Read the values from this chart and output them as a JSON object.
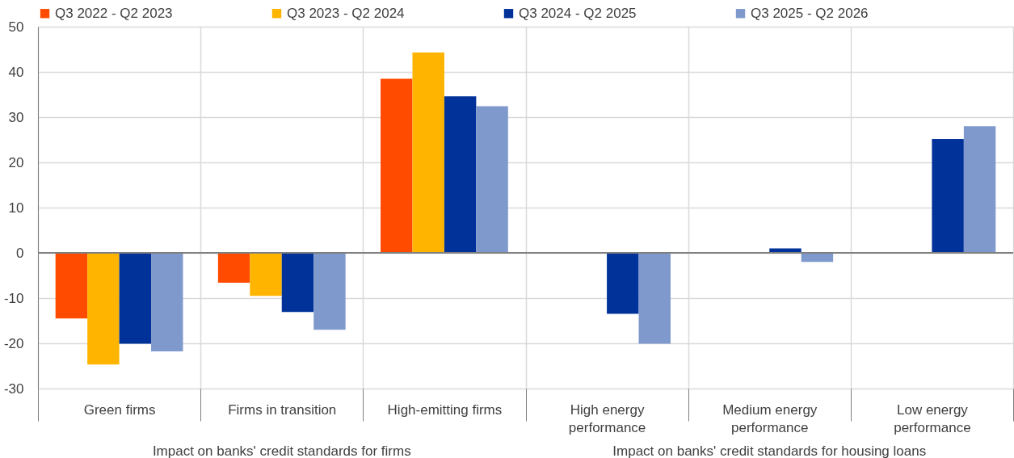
{
  "chart_data": {
    "type": "bar",
    "categories": [
      "Green firms",
      "Firms in transition",
      "High-emitting firms",
      "High energy performance",
      "Medium energy performance",
      "Low energy performance"
    ],
    "series": [
      {
        "name": "Q3 2022 - Q2 2023",
        "color": "#ff4b00",
        "values": [
          -14.5,
          -6.6,
          38.5,
          null,
          null,
          null
        ]
      },
      {
        "name": "Q3 2023 - Q2 2024",
        "color": "#ffb400",
        "values": [
          -24.7,
          -9.5,
          44.3,
          null,
          null,
          null
        ]
      },
      {
        "name": "Q3 2024 - Q2 2025",
        "color": "#003299",
        "values": [
          -20.1,
          -13.1,
          34.6,
          -13.5,
          1.0,
          25.2
        ]
      },
      {
        "name": "Q3 2025 - Q2 2026",
        "color": "#7f99cc",
        "values": [
          -21.8,
          -17.0,
          32.4,
          -20.1,
          -2.0,
          28.0
        ]
      }
    ],
    "ylim": [
      -30,
      50
    ],
    "yticks": [
      -30,
      -20,
      -10,
      0,
      10,
      20,
      30,
      40,
      50
    ],
    "grid": true,
    "legend": "top",
    "annotations": [
      "Impact on banks' credit standards for firms",
      "Impact on banks' credit standards for housing loans"
    ]
  }
}
